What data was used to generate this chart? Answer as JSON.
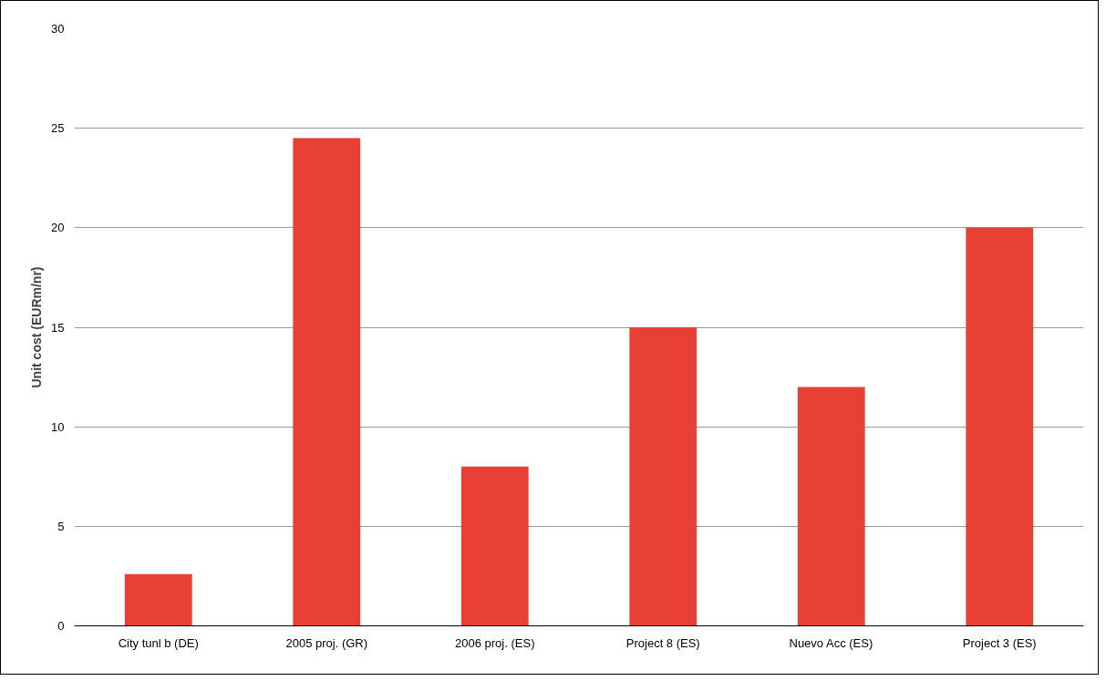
{
  "chart_data": {
    "type": "bar",
    "ylabel": "Unit cost (EURm/nr)",
    "categories": [
      "City tunl b (DE)",
      "2005 proj. (GR)",
      "2006 proj. (ES)",
      "Project 8 (ES)",
      "Nuevo Acc (ES)",
      "Project 3 (ES)"
    ],
    "values": [
      2.6,
      24.5,
      8,
      15,
      12,
      20
    ],
    "color": "#e84035",
    "ylim": [
      0,
      30
    ],
    "yticks": [
      0,
      5,
      10,
      15,
      20,
      25,
      30
    ],
    "grid": "y"
  }
}
